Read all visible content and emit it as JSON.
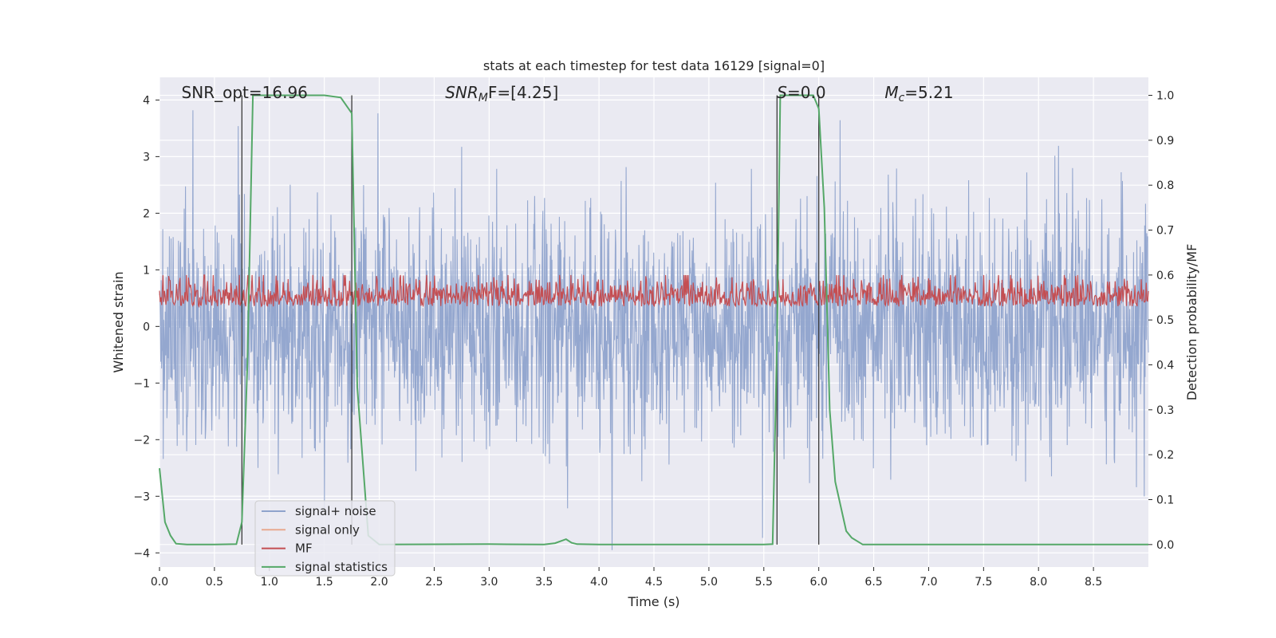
{
  "chart_data": {
    "type": "line",
    "title": "stats at each timestep for test data 16129 [signal=0]",
    "xlabel": "Time (s)",
    "ylabel_left": "Whitened strain",
    "ylabel_right": "Detection probability/MF",
    "xlim": [
      0.0,
      9.0
    ],
    "ylim_left": [
      -4.25,
      4.4
    ],
    "ylim_right": [
      -0.05,
      1.04
    ],
    "x_ticks": [
      "0.0",
      "0.5",
      "1.0",
      "1.5",
      "2.0",
      "2.5",
      "3.0",
      "3.5",
      "4.0",
      "4.5",
      "5.0",
      "5.5",
      "6.0",
      "6.5",
      "7.0",
      "7.5",
      "8.0",
      "8.5"
    ],
    "y_ticks_left": [
      "4",
      "3",
      "2",
      "1",
      "0",
      "−1",
      "−2",
      "−3",
      "−4"
    ],
    "y_ticks_right": [
      "1.0",
      "0.9",
      "0.8",
      "0.7",
      "0.6",
      "0.5",
      "0.4",
      "0.3",
      "0.2",
      "0.1",
      "0.0"
    ],
    "grid": true,
    "annotations": [
      {
        "prefix": "SNR_opt=16.96",
        "sub": "",
        "suffix": "",
        "x": 0.2
      },
      {
        "prefix": "SNR",
        "sub": "M",
        "suffix": "F=[4.25]",
        "x": 2.6
      },
      {
        "prefix": "S",
        "sub": "",
        "suffix": "=0.0",
        "x": 5.62
      },
      {
        "prefix": "M",
        "sub": "c",
        "suffix": "=5.21",
        "x": 6.6
      }
    ],
    "vertical_markers": [
      0.75,
      1.75,
      5.62,
      6.0
    ],
    "legend": {
      "placement": "lower-left",
      "entries": [
        "signal+ noise",
        "signal only",
        "MF",
        "signal statistics"
      ]
    },
    "series": [
      {
        "name": "signal+ noise",
        "axis": "left",
        "color": "#8fa3cc",
        "description": "whitened strain noise, amplitude roughly ±2 with peaks to ±4"
      },
      {
        "name": "signal only",
        "axis": "left",
        "color": "#e8a98f",
        "values": []
      },
      {
        "name": "MF",
        "axis": "right",
        "color": "#c44e52",
        "description": "matched filter output, ~0.50–0.60"
      },
      {
        "name": "signal statistics",
        "axis": "right",
        "color": "#55a868",
        "x": [
          0.0,
          0.05,
          0.1,
          0.15,
          0.25,
          0.5,
          0.7,
          0.75,
          0.8,
          0.85,
          1.0,
          1.5,
          1.65,
          1.75,
          1.8,
          1.9,
          2.0,
          3.0,
          3.5,
          3.6,
          3.7,
          3.75,
          3.8,
          4.0,
          5.0,
          5.5,
          5.58,
          5.62,
          5.65,
          5.7,
          5.75,
          5.95,
          6.0,
          6.05,
          6.1,
          6.15,
          6.25,
          6.3,
          6.4,
          6.5,
          7.0,
          8.0,
          9.0
        ],
        "values": [
          0.17,
          0.05,
          0.02,
          0.002,
          0.0,
          0.0,
          0.001,
          0.05,
          0.4,
          1.0,
          1.0,
          1.0,
          0.995,
          0.96,
          0.35,
          0.02,
          0.0,
          0.001,
          0.0,
          0.003,
          0.012,
          0.004,
          0.001,
          0.0,
          0.0,
          0.0,
          0.001,
          0.45,
          1.0,
          1.0,
          1.0,
          1.0,
          0.97,
          0.75,
          0.3,
          0.14,
          0.03,
          0.015,
          0.0,
          0.0,
          0.0,
          0.0,
          0.0
        ]
      }
    ]
  }
}
